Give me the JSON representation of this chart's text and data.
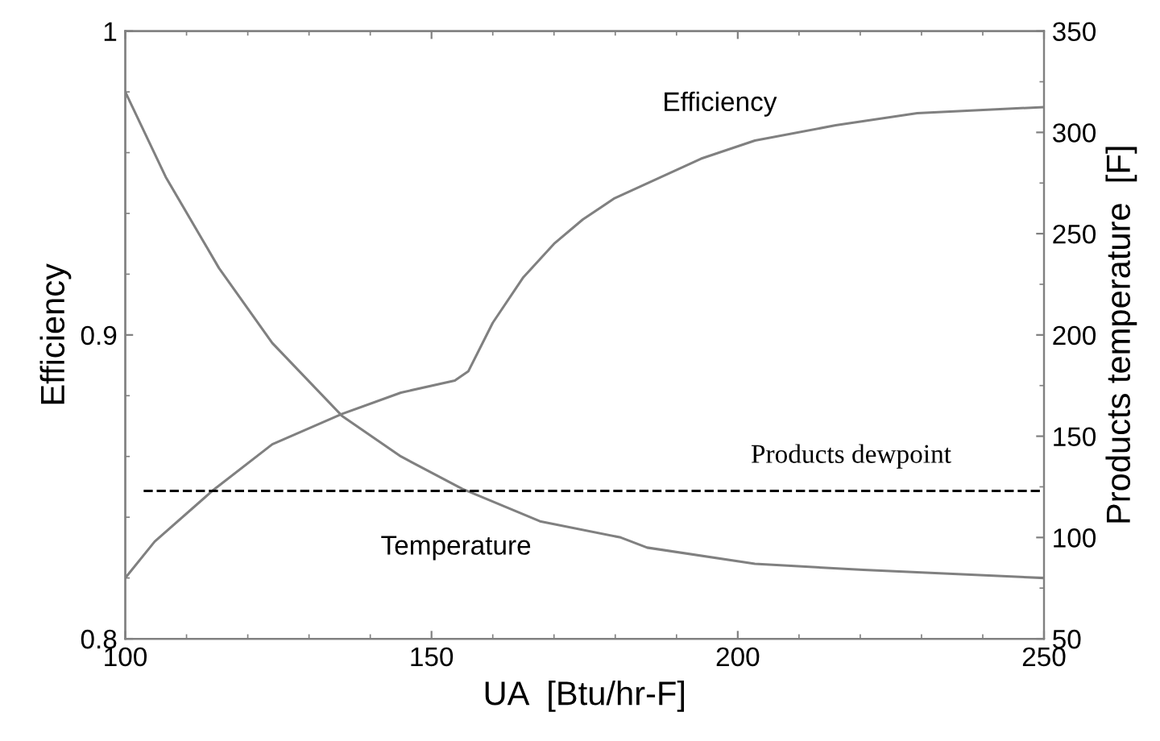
{
  "chart_data": {
    "type": "line",
    "xlabel": "UA  [Btu/hr-F]",
    "ylabel": "Efficiency",
    "y2label": "Products temperature  [F]",
    "xlim": [
      100,
      250
    ],
    "xticks": [
      100,
      150,
      200,
      250
    ],
    "ylim": [
      0.8,
      1
    ],
    "yticks": [
      0.8,
      0.9,
      1
    ],
    "y2lim": [
      50,
      350
    ],
    "y2ticks": [
      50,
      100,
      150,
      200,
      250,
      300,
      350
    ],
    "series": [
      {
        "color": "#808080",
        "x": [
          100,
          104.8,
          114.4,
          124,
          135.4,
          145,
          153.8,
          156,
          160,
          165,
          170,
          174.7,
          179.9,
          194,
          202.8,
          216,
          229.3,
          250
        ],
        "values": [
          0.82,
          0.832,
          0.849,
          0.864,
          0.874,
          0.881,
          0.885,
          0.888,
          0.904,
          0.919,
          0.93,
          0.938,
          0.945,
          0.958,
          0.964,
          0.969,
          0.973,
          0.975
        ]
      },
      {
        "color": "#808080",
        "axis": "y2",
        "x": [
          100,
          106.6,
          115.3,
          124,
          135.4,
          145,
          155,
          167.7,
          180.9,
          185.2,
          202.8,
          220.5,
          250
        ],
        "values": [
          320,
          278,
          233,
          196,
          160,
          140,
          124,
          108,
          100,
          95,
          87,
          84,
          80
        ]
      }
    ],
    "ref_lines": [
      {
        "axis": "y2",
        "value": 123,
        "color": "#000000",
        "line_style": "dashed",
        "label": "Products dewpoint"
      }
    ],
    "annotations": [
      "Efficiency",
      "Temperature"
    ],
    "grid": false,
    "legend": false,
    "marker": "none",
    "line_style": "solid"
  }
}
